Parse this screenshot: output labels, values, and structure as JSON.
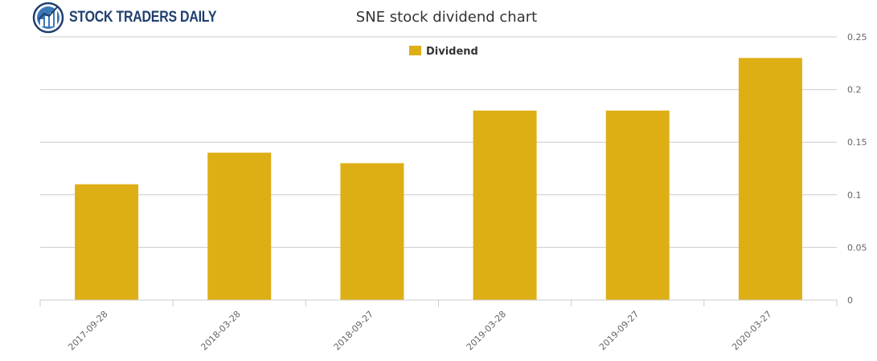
{
  "logo": {
    "text": "STOCK TRADERS DAILY",
    "icon": "bar-chart-globe-icon"
  },
  "chart_data": {
    "type": "bar",
    "title": "SNE stock dividend chart",
    "categories": [
      "2017-09-28",
      "2018-03-28",
      "2018-09-27",
      "2019-03-28",
      "2019-09-27",
      "2020-03-27"
    ],
    "series": [
      {
        "name": "Dividend",
        "values": [
          0.11,
          0.14,
          0.13,
          0.18,
          0.18,
          0.23
        ],
        "color": "#deae15"
      }
    ],
    "xlabel": "",
    "ylabel": "",
    "ylim": [
      0,
      0.25
    ],
    "yticks": [
      "0",
      "0.05",
      "0.1",
      "0.15",
      "0.2",
      "0.25"
    ],
    "y_axis_side": "right",
    "grid": true,
    "legend_position": "top-center"
  }
}
